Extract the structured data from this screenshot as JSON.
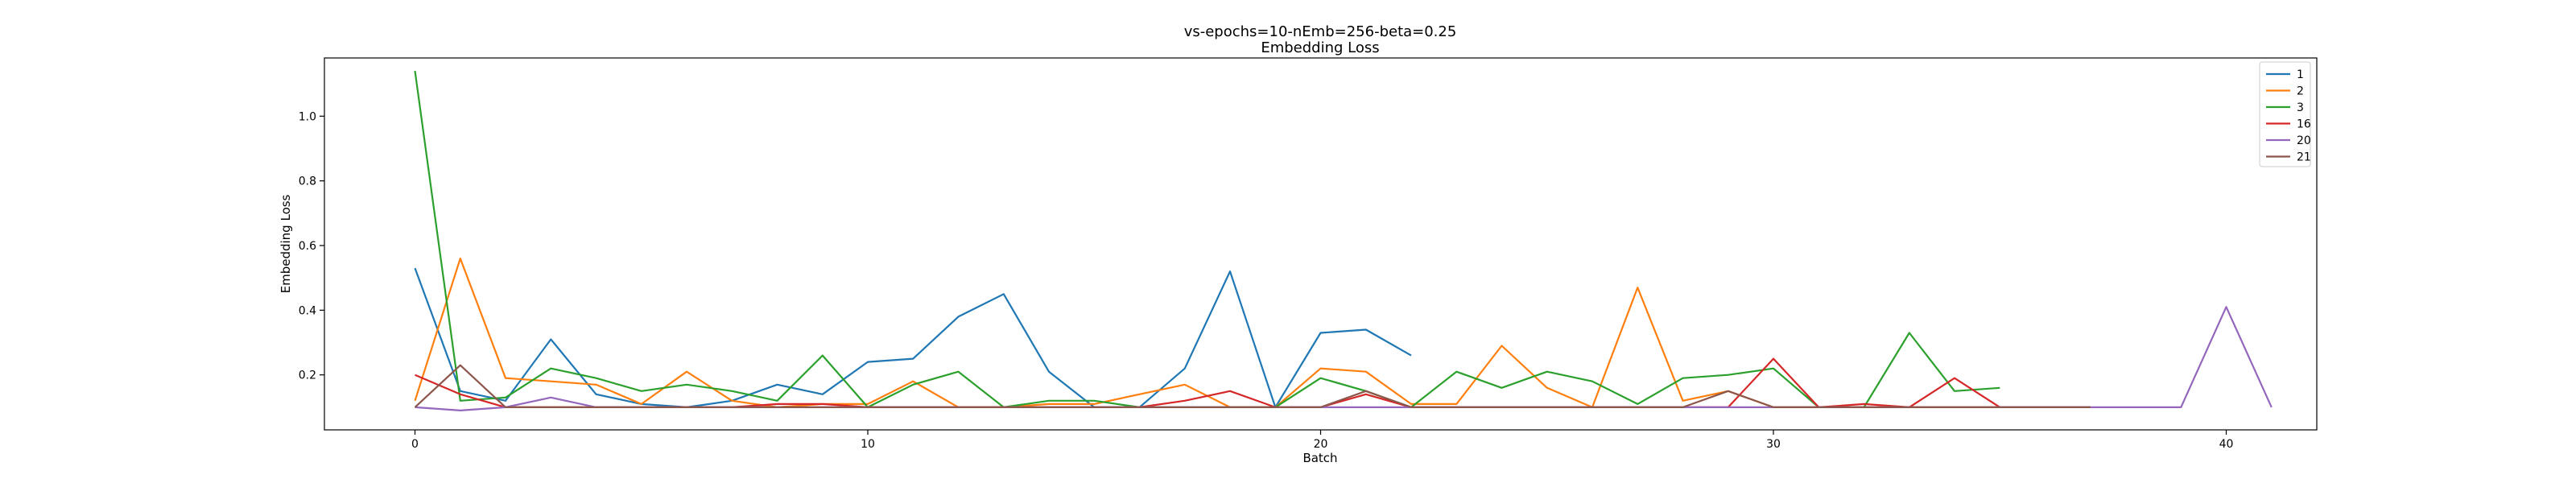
{
  "chart_data": {
    "type": "line",
    "title": "vs-epochs=10-nEmb=256-beta=0.25",
    "subtitle": "Embedding Loss",
    "xlabel": "Batch",
    "ylabel": "Embedding Loss",
    "xlim": [
      -2,
      42
    ],
    "ylim": [
      0.03,
      1.18
    ],
    "xticks": [
      0,
      10,
      20,
      30,
      40
    ],
    "yticks": [
      0.2,
      0.4,
      0.6,
      0.8,
      1.0
    ],
    "ytick_labels": [
      "0.2",
      "0.4",
      "0.6",
      "0.8",
      "1.0"
    ],
    "grid": false,
    "legend_position": "top-right",
    "series": [
      {
        "name": "1",
        "color": "#1f77b4",
        "x": [
          0,
          1,
          2,
          3,
          4,
          5,
          6,
          7,
          8,
          9,
          10,
          11,
          12,
          13,
          14,
          15,
          16,
          17,
          18,
          19,
          20,
          21,
          22
        ],
        "y": [
          0.53,
          0.15,
          0.12,
          0.31,
          0.14,
          0.11,
          0.1,
          0.12,
          0.17,
          0.14,
          0.24,
          0.25,
          0.38,
          0.45,
          0.21,
          0.1,
          0.1,
          0.22,
          0.52,
          0.1,
          0.33,
          0.34,
          0.26
        ]
      },
      {
        "name": "2",
        "color": "#ff7f0e",
        "x": [
          0,
          1,
          2,
          3,
          4,
          5,
          6,
          7,
          8,
          9,
          10,
          11,
          12,
          13,
          14,
          15,
          16,
          17,
          18,
          19,
          20,
          21,
          22,
          23,
          24,
          25,
          26,
          27,
          28,
          29,
          30,
          31,
          32,
          33,
          34,
          35
        ],
        "y": [
          0.12,
          0.56,
          0.19,
          0.18,
          0.17,
          0.11,
          0.21,
          0.12,
          0.1,
          0.11,
          0.11,
          0.18,
          0.1,
          0.1,
          0.11,
          0.11,
          0.14,
          0.17,
          0.1,
          0.1,
          0.22,
          0.21,
          0.11,
          0.11,
          0.29,
          0.16,
          0.1,
          0.47,
          0.12,
          0.15,
          0.1,
          0.1,
          0.1,
          0.1,
          0.1,
          0.1
        ]
      },
      {
        "name": "3",
        "color": "#2ca02c",
        "x": [
          0,
          1,
          2,
          3,
          4,
          5,
          6,
          7,
          8,
          9,
          10,
          11,
          12,
          13,
          14,
          15,
          16,
          17,
          18,
          19,
          20,
          21,
          22,
          23,
          24,
          25,
          26,
          27,
          28,
          29,
          30,
          31,
          32,
          33,
          34,
          35
        ],
        "y": [
          1.14,
          0.12,
          0.13,
          0.22,
          0.19,
          0.15,
          0.17,
          0.15,
          0.12,
          0.26,
          0.1,
          0.17,
          0.21,
          0.1,
          0.12,
          0.12,
          0.1,
          0.1,
          0.1,
          0.1,
          0.19,
          0.15,
          0.1,
          0.21,
          0.16,
          0.21,
          0.18,
          0.11,
          0.19,
          0.2,
          0.22,
          0.1,
          0.1,
          0.33,
          0.15,
          0.16
        ]
      },
      {
        "name": "16",
        "color": "#d62728",
        "x": [
          0,
          1,
          2,
          3,
          4,
          5,
          6,
          7,
          8,
          9,
          10,
          11,
          12,
          13,
          14,
          15,
          16,
          17,
          18,
          19,
          20,
          21,
          22,
          23,
          24,
          25,
          26,
          27,
          28,
          29,
          30,
          31,
          32,
          33,
          34,
          35,
          36,
          37
        ],
        "y": [
          0.2,
          0.14,
          0.1,
          0.1,
          0.1,
          0.1,
          0.1,
          0.1,
          0.11,
          0.11,
          0.1,
          0.1,
          0.1,
          0.1,
          0.1,
          0.1,
          0.1,
          0.12,
          0.15,
          0.1,
          0.1,
          0.14,
          0.1,
          0.1,
          0.1,
          0.1,
          0.1,
          0.1,
          0.1,
          0.1,
          0.25,
          0.1,
          0.11,
          0.1,
          0.19,
          0.1,
          0.1,
          0.1
        ]
      },
      {
        "name": "20",
        "color": "#9467bd",
        "x": [
          0,
          1,
          2,
          3,
          4,
          5,
          6,
          7,
          8,
          9,
          10,
          11,
          12,
          13,
          14,
          15,
          16,
          17,
          18,
          19,
          20,
          21,
          22,
          23,
          24,
          25,
          26,
          27,
          28,
          29,
          30,
          31,
          32,
          33,
          34,
          35,
          36,
          37,
          38,
          39,
          40,
          41
        ],
        "y": [
          0.1,
          0.09,
          0.1,
          0.13,
          0.1,
          0.1,
          0.1,
          0.1,
          0.1,
          0.1,
          0.1,
          0.1,
          0.1,
          0.1,
          0.1,
          0.1,
          0.1,
          0.1,
          0.1,
          0.1,
          0.1,
          0.1,
          0.1,
          0.1,
          0.1,
          0.1,
          0.1,
          0.1,
          0.1,
          0.1,
          0.1,
          0.1,
          0.1,
          0.1,
          0.1,
          0.1,
          0.1,
          0.1,
          0.1,
          0.1,
          0.41,
          0.1
        ]
      },
      {
        "name": "21",
        "color": "#8c564b",
        "x": [
          0,
          1,
          2,
          3,
          4,
          5,
          6,
          7,
          8,
          9,
          10,
          11,
          12,
          13,
          14,
          15,
          16,
          17,
          18,
          19,
          20,
          21,
          22,
          23,
          24,
          25,
          26,
          27,
          28,
          29,
          30,
          31,
          32,
          33,
          34,
          35,
          36,
          37
        ],
        "y": [
          0.1,
          0.23,
          0.1,
          0.1,
          0.1,
          0.1,
          0.1,
          0.1,
          0.1,
          0.1,
          0.1,
          0.1,
          0.1,
          0.1,
          0.1,
          0.1,
          0.1,
          0.1,
          0.1,
          0.1,
          0.1,
          0.15,
          0.1,
          0.1,
          0.1,
          0.1,
          0.1,
          0.1,
          0.1,
          0.15,
          0.1,
          0.1,
          0.1,
          0.1,
          0.1,
          0.1,
          0.1,
          0.1
        ]
      }
    ]
  }
}
